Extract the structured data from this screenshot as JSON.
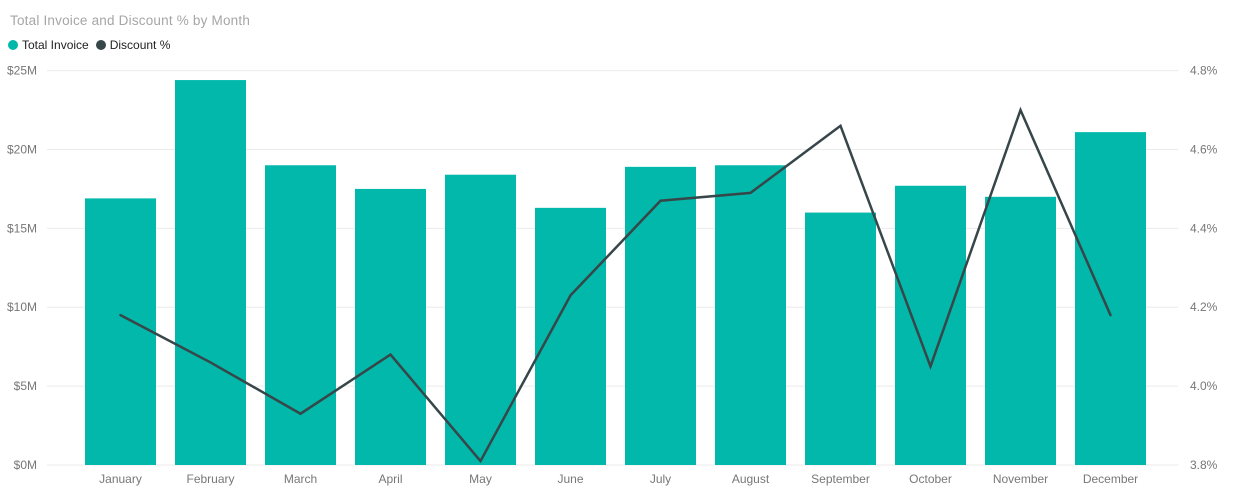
{
  "title": "Total Invoice and Discount % by Month",
  "legend": [
    {
      "label": "Total Invoice",
      "color": "#01B8AA"
    },
    {
      "label": "Discount %",
      "color": "#374649"
    }
  ],
  "colors": {
    "bar": "#01B8AA",
    "line": "#374649",
    "gridline": "#ebebeb",
    "axis_text": "#777777",
    "title_text": "#a6a6a6",
    "legend_text": "#212121",
    "background": "#ffffff"
  },
  "chart_data": {
    "type": "combo-bar-line",
    "title": "Total Invoice and Discount % by Month",
    "categories": [
      "January",
      "February",
      "March",
      "April",
      "May",
      "June",
      "July",
      "August",
      "September",
      "October",
      "November",
      "December"
    ],
    "series": [
      {
        "name": "Total Invoice",
        "type": "bar",
        "axis": "left",
        "color": "#01B8AA",
        "unit": "$M",
        "values": [
          16.9,
          24.4,
          19.0,
          17.5,
          18.4,
          16.3,
          18.9,
          19.0,
          16.0,
          17.7,
          17.0,
          21.1
        ]
      },
      {
        "name": "Discount %",
        "type": "line",
        "axis": "right",
        "color": "#374649",
        "unit": "%",
        "values": [
          4.18,
          4.06,
          3.93,
          4.08,
          3.81,
          4.23,
          4.47,
          4.49,
          4.66,
          4.05,
          4.7,
          4.18
        ]
      }
    ],
    "left_axis": {
      "min": 0,
      "max": 25,
      "ticks": [
        "$0M",
        "$5M",
        "$10M",
        "$15M",
        "$20M",
        "$25M"
      ]
    },
    "right_axis": {
      "min": 3.8,
      "max": 4.8,
      "ticks": [
        "3.8%",
        "4.0%",
        "4.2%",
        "4.4%",
        "4.6%",
        "4.8%"
      ]
    },
    "grid": true,
    "legend_position": "top-left"
  }
}
